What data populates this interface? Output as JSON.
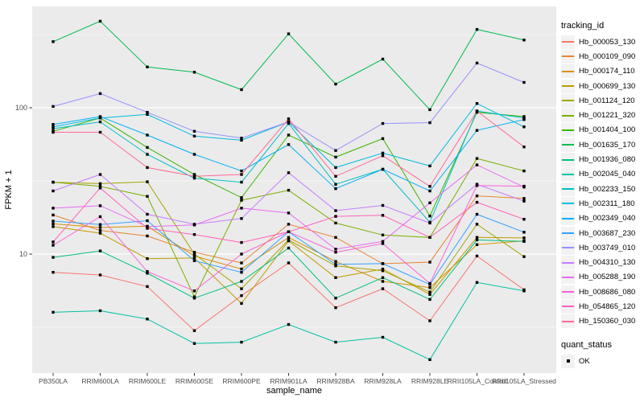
{
  "chart": {
    "y_axis_title": "FPKM + 1",
    "x_axis_title": "sample_name",
    "legend_title": "tracking_id",
    "quant_legend_title": "quant_status",
    "quant_legend_item": "OK"
  },
  "chart_data": {
    "type": "line",
    "title": "",
    "xlabel": "sample_name",
    "ylabel": "FPKM + 1",
    "y_scale": "log10",
    "ylim": [
      1.7,
      490
    ],
    "grid": true,
    "panel_bg": "#EBEBEB",
    "grid_color": "#FFFFFF",
    "point_marker": "black-square",
    "legend_position": "right",
    "legend_title": "tracking_id",
    "point_legend": {
      "title": "quant_status",
      "label": "OK"
    },
    "y_ticks": [
      {
        "label": "100",
        "value": 100
      },
      {
        "label": "10",
        "value": 10
      }
    ],
    "y_minor_ticks": [
      3.162,
      31.62,
      316.2
    ],
    "categories": [
      "PB350LA",
      "RRIM600LA",
      "RRIM600LE",
      "RRIM600SE",
      "RRIM600PE",
      "RRIM901LA",
      "RRIM928BA",
      "RRIM928LA",
      "RRIM928LE",
      "RRII105LA_Control",
      "RRII105LA_Stressed"
    ],
    "series": [
      {
        "name": "Hb_000053_130",
        "color": "#F8766D",
        "values": [
          7.5,
          7.2,
          6.0,
          3.0,
          5.2,
          8.7,
          4.3,
          5.8,
          3.5,
          9.7,
          5.7
        ]
      },
      {
        "name": "Hb_000109_090",
        "color": "#EA8331",
        "values": [
          18.5,
          14.5,
          13.3,
          10.3,
          8.7,
          16.0,
          13.0,
          8.6,
          8.8,
          25.0,
          24.0
        ]
      },
      {
        "name": "Hb_000174_110",
        "color": "#D89000",
        "values": [
          16.1,
          15.2,
          15.5,
          9.7,
          7.9,
          13.0,
          8.9,
          6.5,
          5.9,
          11.6,
          12.3
        ]
      },
      {
        "name": "Hb_000699_130",
        "color": "#C09B00",
        "values": [
          15.4,
          13.9,
          9.3,
          9.4,
          4.6,
          12.3,
          6.9,
          7.9,
          5.3,
          13.0,
          12.9
        ]
      },
      {
        "name": "Hb_001124_120",
        "color": "#A3A500",
        "values": [
          31.0,
          30.3,
          31.2,
          10.0,
          5.8,
          12.5,
          8.3,
          7.7,
          5.5,
          16.0,
          9.6
        ]
      },
      {
        "name": "Hb_001221_320",
        "color": "#7CAE00",
        "values": [
          31.0,
          29.0,
          24.8,
          5.1,
          23.3,
          27.3,
          16.3,
          13.5,
          13.0,
          45.0,
          37.0
        ]
      },
      {
        "name": "Hb_001404_100",
        "color": "#39B600",
        "values": [
          69,
          85,
          53.5,
          35,
          24.3,
          65,
          46,
          61.5,
          18.2,
          93,
          87
        ]
      },
      {
        "name": "Hb_001635_170",
        "color": "#00BB4E",
        "values": [
          283,
          390,
          190,
          175,
          133,
          320,
          145,
          215,
          97,
          343,
          290
        ]
      },
      {
        "name": "Hb_001936_080",
        "color": "#00BF7D",
        "values": [
          9.5,
          10.5,
          7.4,
          5.0,
          6.5,
          11.0,
          5.0,
          6.9,
          4.9,
          12.5,
          12.2
        ]
      },
      {
        "name": "Hb_002045_040",
        "color": "#00C1A3",
        "values": [
          4.0,
          4.1,
          3.6,
          2.45,
          2.5,
          3.3,
          2.5,
          2.7,
          1.9,
          6.4,
          5.6
        ]
      },
      {
        "name": "Hb_002233_150",
        "color": "#00BFC4",
        "values": [
          72,
          80,
          48,
          33,
          31,
          78,
          30,
          38,
          16.5,
          95,
          85
        ]
      },
      {
        "name": "Hb_002311_180",
        "color": "#00BAE0",
        "values": [
          74,
          85,
          90,
          64,
          60,
          80,
          39,
          49,
          40,
          107,
          74
        ]
      },
      {
        "name": "Hb_002349_040",
        "color": "#00B0F6",
        "values": [
          77,
          87,
          65,
          48,
          37,
          56,
          28,
          38,
          27,
          70,
          83
        ]
      },
      {
        "name": "Hb_003687_230",
        "color": "#35A2FF",
        "values": [
          16.8,
          15.9,
          16.9,
          9.0,
          7.5,
          14.2,
          8.5,
          8.6,
          6.2,
          18.7,
          14.1
        ]
      },
      {
        "name": "Hb_003749_010",
        "color": "#9590FF",
        "values": [
          102,
          125,
          93,
          69,
          62,
          80,
          51,
          78,
          79,
          202,
          149
        ]
      },
      {
        "name": "Hb_004310_130",
        "color": "#C77CFF",
        "values": [
          27.0,
          35.0,
          18.7,
          16.0,
          17.5,
          36.0,
          19.8,
          21.5,
          16.3,
          30.0,
          23.0
        ]
      },
      {
        "name": "Hb_005288_190",
        "color": "#E76BF3",
        "values": [
          20.6,
          21.4,
          15.4,
          15.8,
          20.6,
          19.1,
          10.8,
          12.2,
          22.4,
          40.7,
          28.7
        ]
      },
      {
        "name": "Hb_008686_080",
        "color": "#FA62DB",
        "values": [
          11.5,
          18.0,
          7.6,
          5.6,
          10.0,
          14.2,
          10.3,
          11.8,
          6.3,
          29.4,
          29.1
        ]
      },
      {
        "name": "Hb_054865_120",
        "color": "#FF62BC",
        "values": [
          12.1,
          28.3,
          15.0,
          13.6,
          12.0,
          14.2,
          18.1,
          18.4,
          13.0,
          22.6,
          17.3
        ]
      },
      {
        "name": "Hb_150360_030",
        "color": "#FF6A98",
        "values": [
          68,
          68,
          39,
          34,
          35,
          84,
          34,
          47,
          29,
          95,
          54
        ]
      }
    ]
  }
}
